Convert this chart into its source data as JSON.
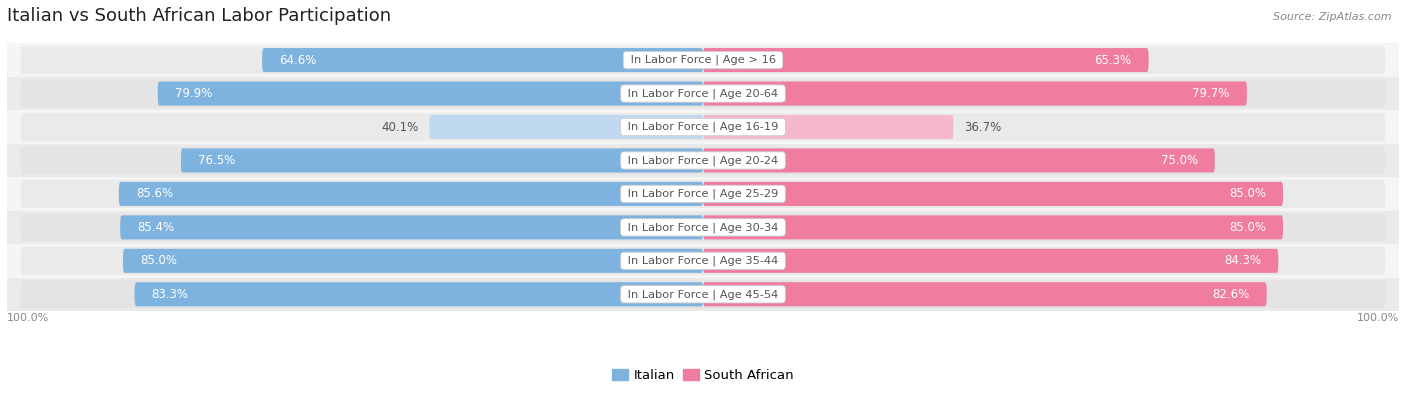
{
  "title": "Italian vs South African Labor Participation",
  "source": "Source: ZipAtlas.com",
  "categories": [
    "In Labor Force | Age > 16",
    "In Labor Force | Age 20-64",
    "In Labor Force | Age 16-19",
    "In Labor Force | Age 20-24",
    "In Labor Force | Age 25-29",
    "In Labor Force | Age 30-34",
    "In Labor Force | Age 35-44",
    "In Labor Force | Age 45-54"
  ],
  "italian_values": [
    64.6,
    79.9,
    40.1,
    76.5,
    85.6,
    85.4,
    85.0,
    83.3
  ],
  "south_african_values": [
    65.3,
    79.7,
    36.7,
    75.0,
    85.0,
    85.0,
    84.3,
    82.6
  ],
  "italian_color": "#7EB3DF",
  "italian_color_light": "#C0D8EF",
  "south_african_color": "#F07CA0",
  "south_african_color_light": "#F5B8CE",
  "label_color_dark": "#555555",
  "row_bg_odd": "#F5F5F5",
  "row_bg_even": "#EAEAEA",
  "outer_bg": "#E8E8E8",
  "max_value": 100.0,
  "bar_height": 0.72,
  "title_fontsize": 13,
  "value_fontsize": 8.5,
  "cat_fontsize": 8.2,
  "tick_fontsize": 8.5,
  "legend_fontsize": 9.5
}
